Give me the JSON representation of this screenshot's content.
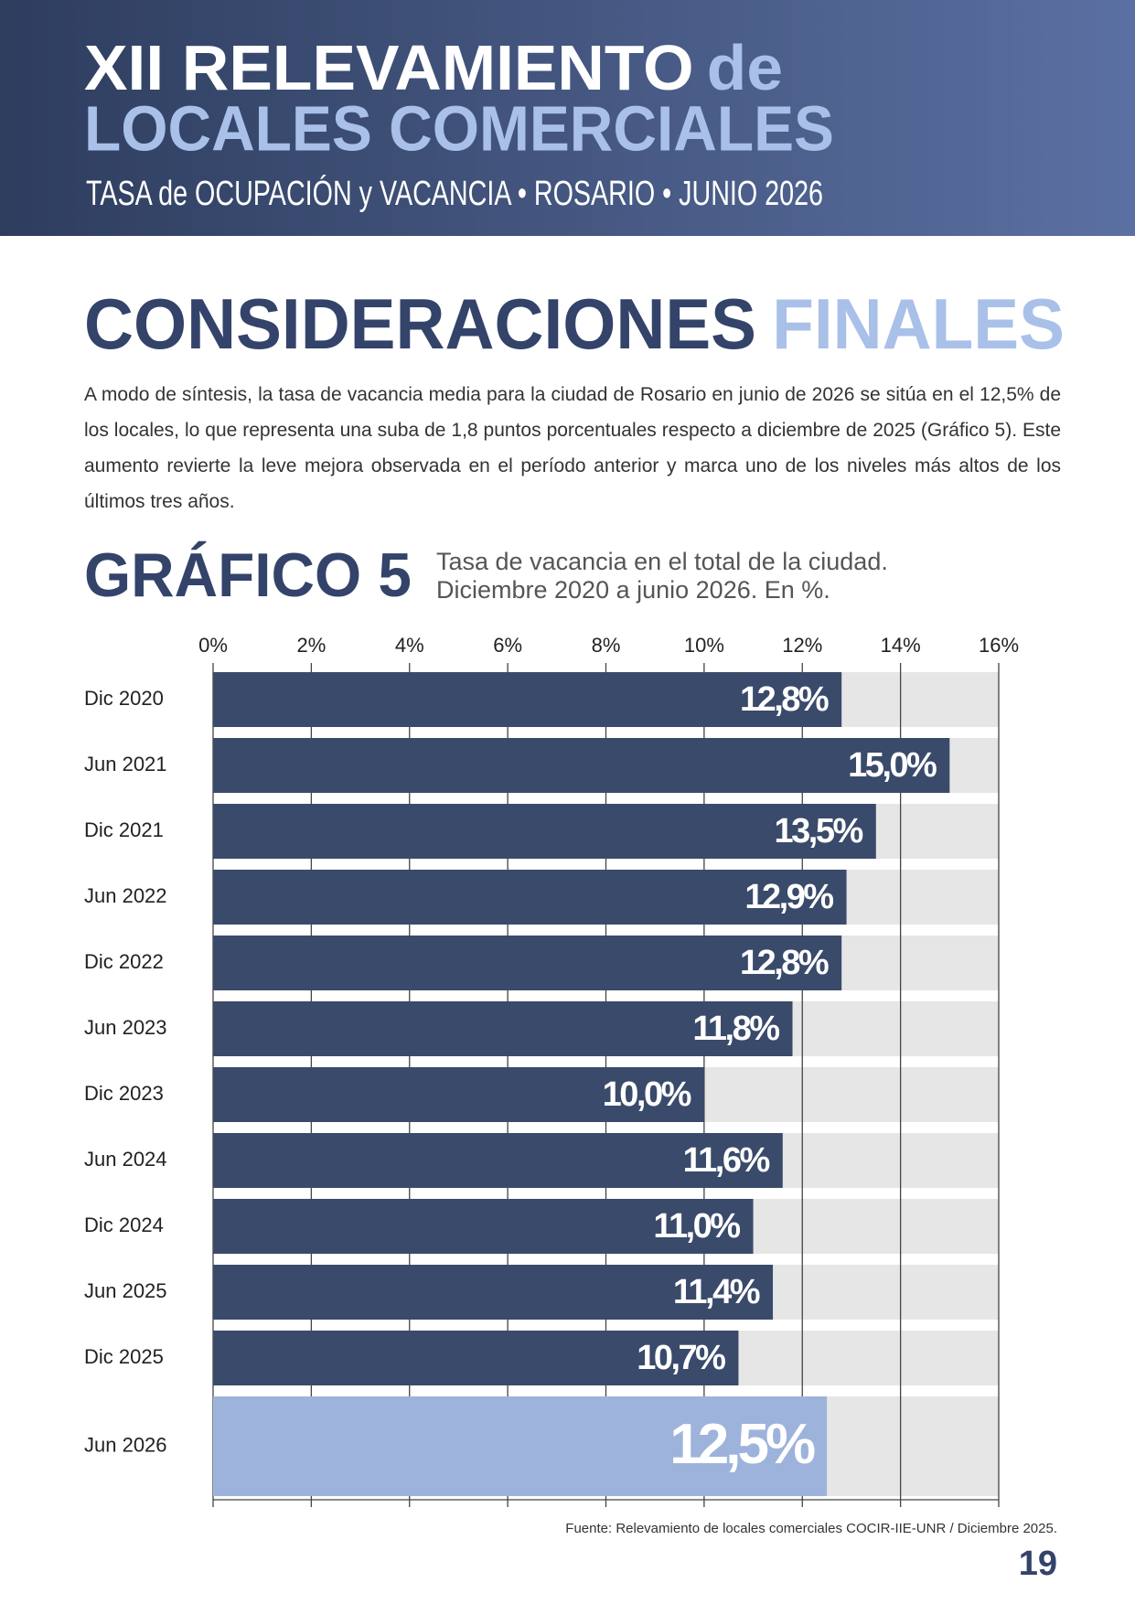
{
  "header": {
    "title_line1": "XII RELEVAMIENTO",
    "title_line1_tail": "de",
    "title_line2": "LOCALES COMERCIALES",
    "subtitle": "TASA de OCUPACIÓN y VACANCIA • ROSARIO • JUNIO 2026"
  },
  "section": {
    "title": "CONSIDERACIONES",
    "title_highlight": "FINALES",
    "paragraph": "A modo de síntesis, la tasa de vacancia media para la ciudad de Rosario en junio de 2026 se sitúa en el 12,5% de los locales, lo que representa una suba de 1,8 puntos porcentuales respecto a diciembre de 2025 (Gráfico 5). Este aumento revierte la leve mejora observada en el período anterior y marca uno de los niveles más altos de los últimos tres años."
  },
  "chart_data": {
    "type": "bar",
    "orientation": "horizontal",
    "label": "GRÁFICO 5",
    "title": "Tasa de vacancia en el total de la ciudad.",
    "subtitle": "Diciembre 2020 a junio 2026. En %.",
    "categories": [
      "Dic 2020",
      "Jun 2021",
      "Dic 2021",
      "Jun 2022",
      "Dic 2022",
      "Jun 2023",
      "Dic 2023",
      "Jun 2024",
      "Dic 2024",
      "Jun 2025",
      "Dic 2025",
      "Jun 2026"
    ],
    "values": [
      12.8,
      15.0,
      13.5,
      12.9,
      12.8,
      11.8,
      10.0,
      11.6,
      11.0,
      11.4,
      10.7,
      12.5
    ],
    "value_labels": [
      "12,8%",
      "15,0%",
      "13,5%",
      "12,9%",
      "12,8%",
      "11,8%",
      "10,0%",
      "11,6%",
      "11,0%",
      "11,4%",
      "10,7%",
      "12,5%"
    ],
    "colors": [
      "#3a4a6b",
      "#3a4a6b",
      "#3a4a6b",
      "#3a4a6b",
      "#3a4a6b",
      "#3a4a6b",
      "#3a4a6b",
      "#3a4a6b",
      "#3a4a6b",
      "#3a4a6b",
      "#3a4a6b",
      "#9db3db"
    ],
    "xlim": [
      0,
      16
    ],
    "xticks": [
      {
        "value": 0,
        "label": "0%"
      },
      {
        "value": 2,
        "label": "2%"
      },
      {
        "value": 4,
        "label": "4%"
      },
      {
        "value": 6,
        "label": "6%"
      },
      {
        "value": 8,
        "label": "8%"
      },
      {
        "value": 10,
        "label": "10%"
      },
      {
        "value": 12,
        "label": "12%"
      },
      {
        "value": 14,
        "label": "14%"
      },
      {
        "value": 16,
        "label": "16%"
      }
    ],
    "grid": true,
    "source": "Fuente: Relevamiento de locales comerciales COCIR-IIE-UNR / Diciembre 2025."
  },
  "page_number": "19"
}
